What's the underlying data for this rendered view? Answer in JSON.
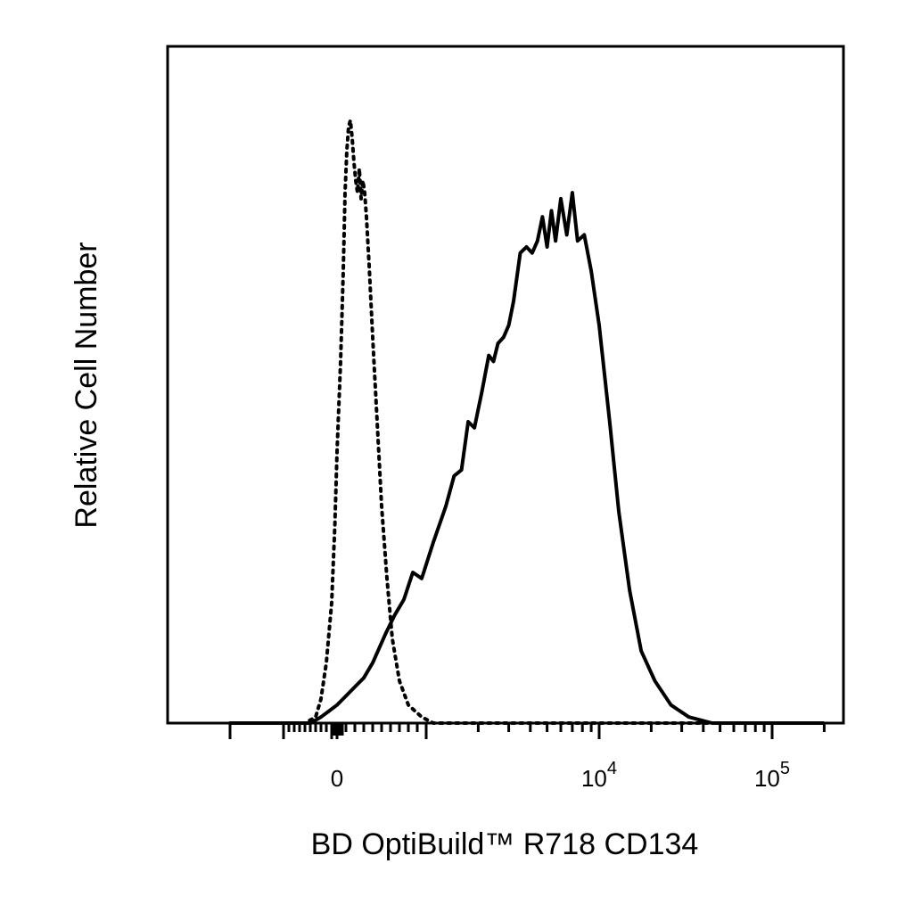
{
  "chart_data": {
    "type": "line",
    "title": "",
    "xlabel": "BD OptiBuild™ R718 CD134",
    "ylabel": "Relative Cell Number",
    "x_scale": "biexponential",
    "xlim": [
      -2000,
      200000
    ],
    "ylim": [
      0,
      1
    ],
    "grid": false,
    "legend": "none",
    "x_ticks": [
      {
        "value": 0,
        "base": "0",
        "exp": ""
      },
      {
        "value": 10000,
        "base": "10",
        "exp": "4"
      },
      {
        "value": 100000,
        "base": "10",
        "exp": "5"
      }
    ],
    "series": [
      {
        "style": "dotted",
        "color": "#000000",
        "points": [
          [
            -2000,
            0.0
          ],
          [
            -600,
            0.0
          ],
          [
            -400,
            0.01
          ],
          [
            -300,
            0.04
          ],
          [
            -200,
            0.1
          ],
          [
            -100,
            0.2
          ],
          [
            -40,
            0.33
          ],
          [
            0,
            0.45
          ],
          [
            40,
            0.6
          ],
          [
            70,
            0.75
          ],
          [
            90,
            0.88
          ],
          [
            110,
            0.95
          ],
          [
            130,
            0.99
          ],
          [
            150,
            1.0
          ],
          [
            170,
            0.97
          ],
          [
            190,
            0.93
          ],
          [
            210,
            0.9
          ],
          [
            230,
            0.88
          ],
          [
            250,
            0.92
          ],
          [
            270,
            0.87
          ],
          [
            290,
            0.9
          ],
          [
            310,
            0.88
          ],
          [
            330,
            0.84
          ],
          [
            360,
            0.76
          ],
          [
            400,
            0.64
          ],
          [
            450,
            0.5
          ],
          [
            500,
            0.36
          ],
          [
            560,
            0.24
          ],
          [
            620,
            0.14
          ],
          [
            700,
            0.07
          ],
          [
            800,
            0.03
          ],
          [
            950,
            0.01
          ],
          [
            1100,
            0.0
          ],
          [
            3000,
            0.0
          ],
          [
            10000,
            0.0
          ],
          [
            200000,
            0.0
          ]
        ]
      },
      {
        "style": "solid",
        "color": "#000000",
        "points": [
          [
            -2000,
            0.0
          ],
          [
            -500,
            0.0
          ],
          [
            -300,
            0.01
          ],
          [
            -150,
            0.02
          ],
          [
            0,
            0.03
          ],
          [
            100,
            0.045
          ],
          [
            200,
            0.06
          ],
          [
            300,
            0.075
          ],
          [
            400,
            0.1
          ],
          [
            550,
            0.15
          ],
          [
            650,
            0.18
          ],
          [
            750,
            0.205
          ],
          [
            850,
            0.25
          ],
          [
            950,
            0.24
          ],
          [
            1100,
            0.3
          ],
          [
            1300,
            0.36
          ],
          [
            1450,
            0.41
          ],
          [
            1600,
            0.42
          ],
          [
            1750,
            0.5
          ],
          [
            1900,
            0.49
          ],
          [
            2100,
            0.55
          ],
          [
            2300,
            0.61
          ],
          [
            2450,
            0.6
          ],
          [
            2600,
            0.63
          ],
          [
            2800,
            0.64
          ],
          [
            3000,
            0.66
          ],
          [
            3200,
            0.7
          ],
          [
            3500,
            0.78
          ],
          [
            3800,
            0.79
          ],
          [
            4100,
            0.78
          ],
          [
            4400,
            0.8
          ],
          [
            4700,
            0.84
          ],
          [
            5000,
            0.79
          ],
          [
            5300,
            0.85
          ],
          [
            5600,
            0.8
          ],
          [
            6000,
            0.87
          ],
          [
            6500,
            0.81
          ],
          [
            7000,
            0.88
          ],
          [
            7500,
            0.8
          ],
          [
            8200,
            0.81
          ],
          [
            9000,
            0.75
          ],
          [
            10000,
            0.66
          ],
          [
            11500,
            0.5
          ],
          [
            13000,
            0.35
          ],
          [
            15000,
            0.22
          ],
          [
            17500,
            0.12
          ],
          [
            21000,
            0.07
          ],
          [
            26000,
            0.03
          ],
          [
            33000,
            0.01
          ],
          [
            45000,
            0.0
          ],
          [
            200000,
            0.0
          ]
        ]
      }
    ]
  }
}
